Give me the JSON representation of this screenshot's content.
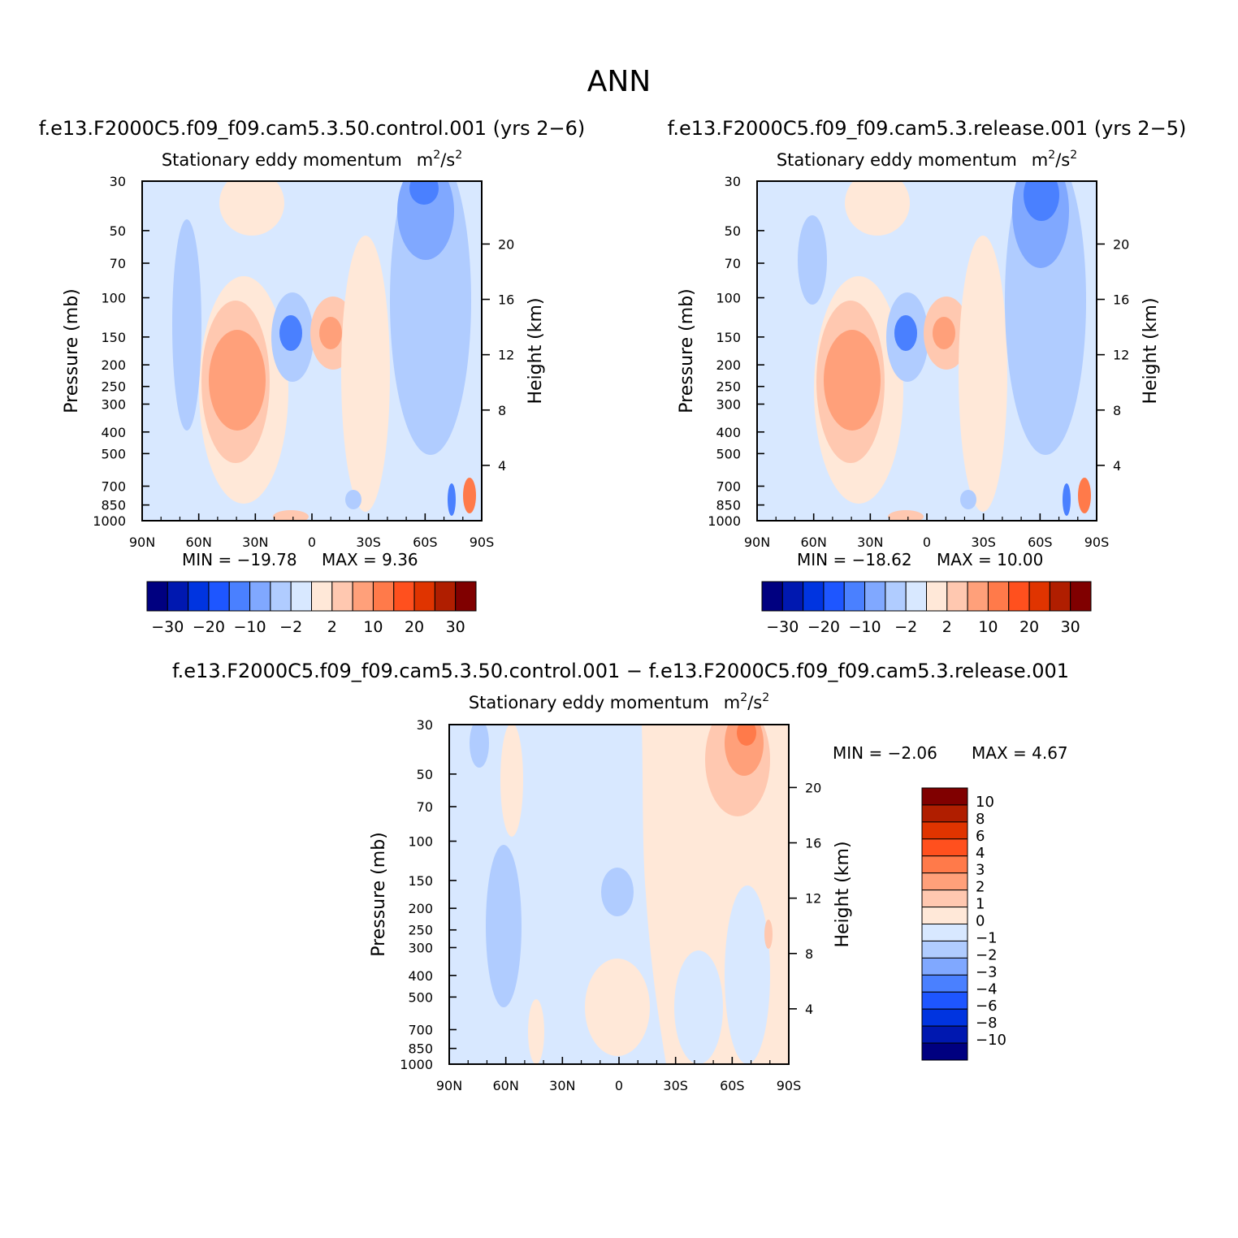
{
  "page": {
    "title": "ANN"
  },
  "panels": [
    {
      "case_title": "f.e13.F2000C5.f09_f09.cam5.3.50.control.001 (yrs 2−6)",
      "subtitle": "Stationary eddy momentum",
      "units_base": "m",
      "units_mid": "/s",
      "units_sup": "2",
      "min_label": "MIN = −19.78",
      "max_label": "MAX =   9.36"
    },
    {
      "case_title": "f.e13.F2000C5.f09_f09.cam5.3.release.001 (yrs 2−5)",
      "subtitle": "Stationary eddy momentum",
      "units_base": "m",
      "units_mid": "/s",
      "units_sup": "2",
      "min_label": "MIN = −18.62",
      "max_label": "MAX =  10.00"
    },
    {
      "case_title": "f.e13.F2000C5.f09_f09.cam5.3.50.control.001 − f.e13.F2000C5.f09_f09.cam5.3.release.001",
      "subtitle": "Stationary eddy momentum",
      "units_base": "m",
      "units_mid": "/s",
      "units_sup": "2",
      "min_label": "MIN =  −2.06",
      "max_label": "MAX =   4.67"
    }
  ],
  "axis_labels": {
    "ylabel": "Pressure (mb)",
    "y2label": "Height (km)"
  },
  "colorbars": {
    "main": {
      "colors": [
        "#000080",
        "#0018b0",
        "#0034e0",
        "#1e56ff",
        "#4a80ff",
        "#80a8ff",
        "#b0ccff",
        "#d8e8ff",
        "#ffe8d8",
        "#ffc8b0",
        "#ffa07a",
        "#ff7a4a",
        "#ff501e",
        "#e03400",
        "#b01e00",
        "#800000"
      ],
      "labels": [
        "−30",
        "−20",
        "−10",
        "−2",
        "2",
        "10",
        "20",
        "30"
      ]
    },
    "diff": {
      "colors": [
        "#000080",
        "#0018b0",
        "#0034e0",
        "#1e56ff",
        "#4a80ff",
        "#80a8ff",
        "#b0ccff",
        "#d8e8ff",
        "#ffe8d8",
        "#ffc8b0",
        "#ffa07a",
        "#ff7a4a",
        "#ff501e",
        "#e03400",
        "#b01e00",
        "#800000"
      ],
      "labels": [
        "10",
        "8",
        "6",
        "4",
        "3",
        "2",
        "1",
        "0",
        "−1",
        "−2",
        "−3",
        "−4",
        "−6",
        "−8",
        "−10"
      ]
    }
  },
  "chart_data": [
    {
      "type": "heatmap",
      "title": "Stationary eddy momentum m²/s² — control.001 (yrs 2−6)",
      "xlabel": "",
      "ylabel": "Pressure (mb)",
      "y2label": "Height (km)",
      "x_ticks": [
        "90N",
        "60N",
        "30N",
        "0",
        "30S",
        "60S",
        "90S"
      ],
      "y_ticks": [
        30,
        50,
        70,
        100,
        150,
        200,
        250,
        300,
        400,
        500,
        700,
        850,
        1000
      ],
      "y_tick_labels": [
        "30",
        "50",
        "70",
        "100",
        "150",
        "200",
        "250",
        "300",
        "400",
        "500",
        "700",
        "850",
        "1000"
      ],
      "y2_ticks": [
        "20",
        "16",
        "12",
        "8",
        "4"
      ],
      "y2_tick_values": [
        20,
        16,
        12,
        8,
        4
      ],
      "ylim": [
        1000,
        30
      ],
      "xlim": [
        90,
        -90
      ],
      "min": -19.78,
      "max": 9.36,
      "levels": [
        -30,
        -25,
        -20,
        -15,
        -10,
        -5,
        -2,
        0,
        2,
        5,
        10,
        15,
        20,
        25,
        30
      ],
      "features": [
        {
          "lat": 63,
          "p": 130,
          "value": -3
        },
        {
          "lat": 40,
          "p": 280,
          "value": 6
        },
        {
          "lat": 12,
          "p": 150,
          "value": -9
        },
        {
          "lat": -10,
          "p": 150,
          "value": 7
        },
        {
          "lat": -62,
          "p": 35,
          "value": -13
        },
        {
          "lat": -60,
          "p": 120,
          "value": -4
        }
      ]
    },
    {
      "type": "heatmap",
      "title": "Stationary eddy momentum m²/s² — release.001 (yrs 2−5)",
      "xlabel": "",
      "ylabel": "Pressure (mb)",
      "y2label": "Height (km)",
      "x_ticks": [
        "90N",
        "60N",
        "30N",
        "0",
        "30S",
        "60S",
        "90S"
      ],
      "y_ticks": [
        30,
        50,
        70,
        100,
        150,
        200,
        250,
        300,
        400,
        500,
        700,
        850,
        1000
      ],
      "y_tick_labels": [
        "30",
        "50",
        "70",
        "100",
        "150",
        "200",
        "250",
        "300",
        "400",
        "500",
        "700",
        "850",
        "1000"
      ],
      "y2_ticks": [
        "20",
        "16",
        "12",
        "8",
        "4"
      ],
      "y2_tick_values": [
        20,
        16,
        12,
        8,
        4
      ],
      "ylim": [
        1000,
        30
      ],
      "xlim": [
        90,
        -90
      ],
      "min": -18.62,
      "max": 10.0,
      "levels": [
        -30,
        -25,
        -20,
        -15,
        -10,
        -5,
        -2,
        0,
        2,
        5,
        10,
        15,
        20,
        25,
        30
      ],
      "features": [
        {
          "lat": 63,
          "p": 80,
          "value": -3
        },
        {
          "lat": 40,
          "p": 280,
          "value": 6
        },
        {
          "lat": 12,
          "p": 150,
          "value": -8
        },
        {
          "lat": -10,
          "p": 150,
          "value": 6
        },
        {
          "lat": -62,
          "p": 40,
          "value": -12
        },
        {
          "lat": -60,
          "p": 120,
          "value": -4
        }
      ]
    },
    {
      "type": "heatmap",
      "title": "Stationary eddy momentum m²/s² — control.001 − release.001",
      "xlabel": "",
      "ylabel": "Pressure (mb)",
      "y2label": "Height (km)",
      "x_ticks": [
        "90N",
        "60N",
        "30N",
        "0",
        "30S",
        "60S",
        "90S"
      ],
      "y_ticks": [
        30,
        50,
        70,
        100,
        150,
        200,
        250,
        300,
        400,
        500,
        700,
        850,
        1000
      ],
      "y_tick_labels": [
        "30",
        "50",
        "70",
        "100",
        "150",
        "200",
        "250",
        "300",
        "400",
        "500",
        "700",
        "850",
        "1000"
      ],
      "y2_ticks": [
        "20",
        "16",
        "12",
        "8",
        "4"
      ],
      "y2_tick_values": [
        20,
        16,
        12,
        8,
        4
      ],
      "ylim": [
        1000,
        30
      ],
      "xlim": [
        90,
        -90
      ],
      "min": -2.06,
      "max": 4.67,
      "levels": [
        -10,
        -8,
        -6,
        -4,
        -3,
        -2,
        -1,
        0,
        1,
        2,
        3,
        4,
        6,
        8,
        10
      ],
      "features": [
        {
          "lat": 65,
          "p": 300,
          "value": -1.5
        },
        {
          "lat": 5,
          "p": 150,
          "value": -1.5
        },
        {
          "lat": -68,
          "p": 35,
          "value": 4.67
        },
        {
          "lat": -40,
          "p": 200,
          "value": 0.5
        }
      ]
    }
  ]
}
